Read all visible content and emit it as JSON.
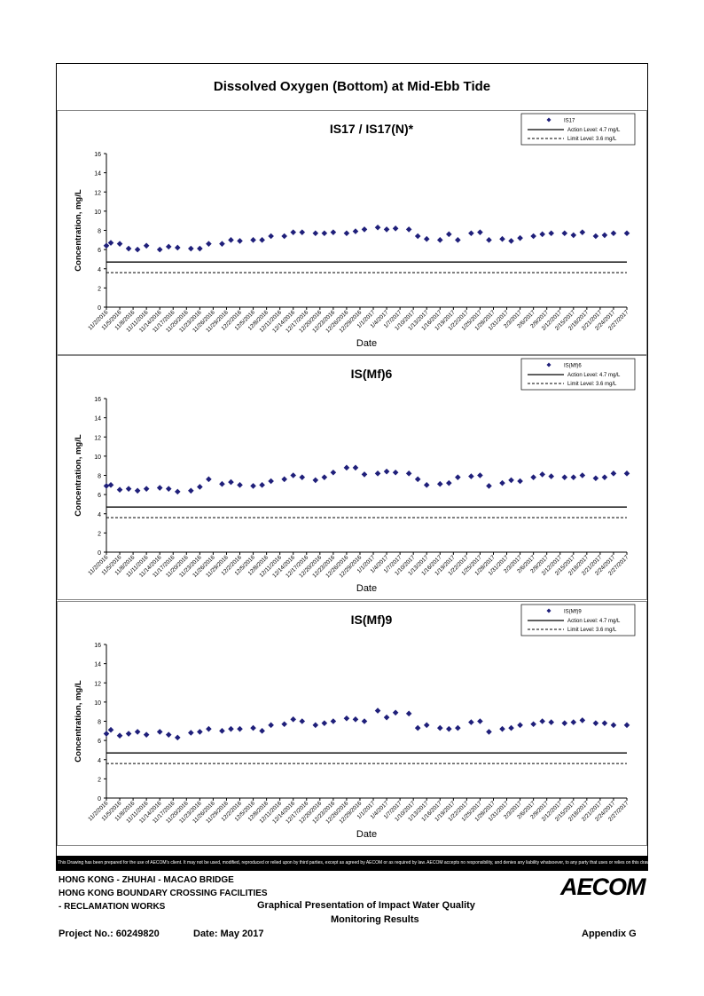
{
  "page": {
    "title": "Dissolved Oxygen (Bottom) at Mid-Ebb Tide",
    "disclaimer": "This Drawing has been prepared for the use of AECOM's client. It may not be used, modified, reproduced or relied upon by third parties, except as agreed by AECOM or as required by law. AECOM accepts no responsibility, and denies any liability whatsoever, to any party that uses or relies on this drawing without AECOM's express written consent."
  },
  "footer": {
    "line1": "HONG KONG - ZHUHAI - MACAO BRIDGE",
    "line2": "HONG KONG BOUNDARY CROSSING FACILITIES",
    "line3": "- RECLAMATION WORKS",
    "center1": "Graphical Presentation of Impact Water Quality",
    "center2": "Monitoring Results",
    "project": "Project No.: 60249820",
    "date": "Date: May 2017",
    "appendix": "Appendix G",
    "logo": "AECOM"
  },
  "chart_data": [
    {
      "type": "scatter",
      "title": "IS17 / IS17(N)*",
      "xlabel": "Date",
      "ylabel": "Concentration, mg/L",
      "ylim": [
        0,
        16
      ],
      "yticks": [
        0,
        2,
        4,
        6,
        8,
        10,
        12,
        14,
        16
      ],
      "xticks": [
        "11/2/2016",
        "11/5/2016",
        "11/8/2016",
        "11/11/2016",
        "11/14/2016",
        "11/17/2016",
        "11/20/2016",
        "11/23/2016",
        "11/26/2016",
        "11/29/2016",
        "12/2/2016",
        "12/5/2016",
        "12/8/2016",
        "12/11/2016",
        "12/14/2016",
        "12/17/2016",
        "12/20/2016",
        "12/23/2016",
        "12/26/2016",
        "12/29/2016",
        "1/1/2017",
        "1/4/2017",
        "1/7/2017",
        "1/10/2017",
        "1/13/2017",
        "1/16/2017",
        "1/19/2017",
        "1/22/2017",
        "1/25/2017",
        "1/28/2017",
        "1/31/2017",
        "2/3/2017",
        "2/6/2017",
        "2/9/2017",
        "2/12/2017",
        "2/15/2017",
        "2/18/2017",
        "2/21/2017",
        "2/24/2017",
        "2/27/2017"
      ],
      "grid": false,
      "legend_position": "top-right",
      "series": [
        {
          "name": "IS17",
          "marker": "diamond",
          "color": "#1f1f7a",
          "x": [
            "11/2/2016",
            "11/3/2016",
            "11/5/2016",
            "11/7/2016",
            "11/9/2016",
            "11/11/2016",
            "11/14/2016",
            "11/16/2016",
            "11/18/2016",
            "11/21/2016",
            "11/23/2016",
            "11/25/2016",
            "11/28/2016",
            "11/30/2016",
            "12/2/2016",
            "12/5/2016",
            "12/7/2016",
            "12/9/2016",
            "12/12/2016",
            "12/14/2016",
            "12/16/2016",
            "12/19/2016",
            "12/21/2016",
            "12/23/2016",
            "12/26/2016",
            "12/28/2016",
            "12/30/2016",
            "1/2/2017",
            "1/4/2017",
            "1/6/2017",
            "1/9/2017",
            "1/11/2017",
            "1/13/2017",
            "1/16/2017",
            "1/18/2017",
            "1/20/2017",
            "1/23/2017",
            "1/25/2017",
            "1/27/2017",
            "1/30/2017",
            "2/1/2017",
            "2/3/2017",
            "2/6/2017",
            "2/8/2017",
            "2/10/2017",
            "2/13/2017",
            "2/15/2017",
            "2/17/2017",
            "2/20/2017",
            "2/22/2017",
            "2/24/2017",
            "2/27/2017"
          ],
          "y": [
            6.4,
            6.7,
            6.6,
            6.1,
            6.0,
            6.4,
            6.0,
            6.3,
            6.2,
            6.1,
            6.1,
            6.6,
            6.6,
            7.0,
            6.9,
            7.0,
            7.0,
            7.4,
            7.4,
            7.8,
            7.8,
            7.7,
            7.7,
            7.8,
            7.7,
            7.9,
            8.1,
            8.3,
            8.1,
            8.2,
            8.1,
            7.4,
            7.1,
            7.0,
            7.6,
            7.0,
            7.7,
            7.8,
            7.0,
            7.1,
            6.9,
            7.2,
            7.4,
            7.6,
            7.7,
            7.7,
            7.5,
            7.8,
            7.4,
            7.5,
            7.7,
            7.7
          ]
        },
        {
          "name": "Action Level: 4.7 mg/L",
          "style": "solid",
          "value": 4.7
        },
        {
          "name": "Limit Level: 3.6 mg/L",
          "style": "dashed",
          "value": 3.6
        }
      ]
    },
    {
      "type": "scatter",
      "title": "IS(Mf)6",
      "xlabel": "Date",
      "ylabel": "Concentration, mg/L",
      "ylim": [
        0,
        16
      ],
      "yticks": [
        0,
        2,
        4,
        6,
        8,
        10,
        12,
        14,
        16
      ],
      "xticks": [
        "11/2/2016",
        "11/5/2016",
        "11/8/2016",
        "11/11/2016",
        "11/14/2016",
        "11/17/2016",
        "11/20/2016",
        "11/23/2016",
        "11/26/2016",
        "11/29/2016",
        "12/2/2016",
        "12/5/2016",
        "12/8/2016",
        "12/11/2016",
        "12/14/2016",
        "12/17/2016",
        "12/20/2016",
        "12/23/2016",
        "12/26/2016",
        "12/29/2016",
        "1/1/2017",
        "1/4/2017",
        "1/7/2017",
        "1/10/2017",
        "1/13/2017",
        "1/16/2017",
        "1/19/2017",
        "1/22/2017",
        "1/25/2017",
        "1/28/2017",
        "1/31/2017",
        "2/3/2017",
        "2/6/2017",
        "2/9/2017",
        "2/12/2017",
        "2/15/2017",
        "2/18/2017",
        "2/21/2017",
        "2/24/2017",
        "2/27/2017"
      ],
      "grid": false,
      "legend_position": "top-right",
      "series": [
        {
          "name": "IS(Mf)6",
          "marker": "diamond",
          "color": "#1f1f7a",
          "x": [
            "11/2/2016",
            "11/3/2016",
            "11/5/2016",
            "11/7/2016",
            "11/9/2016",
            "11/11/2016",
            "11/14/2016",
            "11/16/2016",
            "11/18/2016",
            "11/21/2016",
            "11/23/2016",
            "11/25/2016",
            "11/28/2016",
            "11/30/2016",
            "12/2/2016",
            "12/5/2016",
            "12/7/2016",
            "12/9/2016",
            "12/12/2016",
            "12/14/2016",
            "12/16/2016",
            "12/19/2016",
            "12/21/2016",
            "12/23/2016",
            "12/26/2016",
            "12/28/2016",
            "12/30/2016",
            "1/2/2017",
            "1/4/2017",
            "1/6/2017",
            "1/9/2017",
            "1/11/2017",
            "1/13/2017",
            "1/16/2017",
            "1/18/2017",
            "1/20/2017",
            "1/23/2017",
            "1/25/2017",
            "1/27/2017",
            "1/30/2017",
            "2/1/2017",
            "2/3/2017",
            "2/6/2017",
            "2/8/2017",
            "2/10/2017",
            "2/13/2017",
            "2/15/2017",
            "2/17/2017",
            "2/20/2017",
            "2/22/2017",
            "2/24/2017",
            "2/27/2017"
          ],
          "y": [
            6.9,
            7.0,
            6.5,
            6.6,
            6.4,
            6.6,
            6.7,
            6.6,
            6.3,
            6.4,
            6.8,
            7.6,
            7.1,
            7.3,
            7.0,
            6.9,
            7.0,
            7.4,
            7.6,
            8.0,
            7.8,
            7.5,
            7.8,
            8.3,
            8.8,
            8.8,
            8.1,
            8.2,
            8.4,
            8.3,
            8.2,
            7.6,
            7.0,
            7.1,
            7.2,
            7.8,
            7.9,
            8.0,
            6.9,
            7.2,
            7.5,
            7.4,
            7.8,
            8.1,
            7.9,
            7.8,
            7.8,
            8.0,
            7.7,
            7.8,
            8.2,
            8.2
          ]
        },
        {
          "name": "Action Level: 4.7 mg/L",
          "style": "solid",
          "value": 4.7
        },
        {
          "name": "Limit Level: 3.6 mg/L",
          "style": "dashed",
          "value": 3.6
        }
      ]
    },
    {
      "type": "scatter",
      "title": "IS(Mf)9",
      "xlabel": "Date",
      "ylabel": "Concentration, mg/L",
      "ylim": [
        0,
        16
      ],
      "yticks": [
        0,
        2,
        4,
        6,
        8,
        10,
        12,
        14,
        16
      ],
      "xticks": [
        "11/2/2016",
        "11/5/2016",
        "11/8/2016",
        "11/11/2016",
        "11/14/2016",
        "11/17/2016",
        "11/20/2016",
        "11/23/2016",
        "11/26/2016",
        "11/29/2016",
        "12/2/2016",
        "12/5/2016",
        "12/8/2016",
        "12/11/2016",
        "12/14/2016",
        "12/17/2016",
        "12/20/2016",
        "12/23/2016",
        "12/26/2016",
        "12/29/2016",
        "1/1/2017",
        "1/4/2017",
        "1/7/2017",
        "1/10/2017",
        "1/13/2017",
        "1/16/2017",
        "1/19/2017",
        "1/22/2017",
        "1/25/2017",
        "1/28/2017",
        "1/31/2017",
        "2/3/2017",
        "2/6/2017",
        "2/9/2017",
        "2/12/2017",
        "2/15/2017",
        "2/18/2017",
        "2/21/2017",
        "2/24/2017",
        "2/27/2017"
      ],
      "grid": false,
      "legend_position": "top-right",
      "series": [
        {
          "name": "IS(Mf)9",
          "marker": "diamond",
          "color": "#1f1f7a",
          "x": [
            "11/2/2016",
            "11/3/2016",
            "11/5/2016",
            "11/7/2016",
            "11/9/2016",
            "11/11/2016",
            "11/14/2016",
            "11/16/2016",
            "11/18/2016",
            "11/21/2016",
            "11/23/2016",
            "11/25/2016",
            "11/28/2016",
            "11/30/2016",
            "12/2/2016",
            "12/5/2016",
            "12/7/2016",
            "12/9/2016",
            "12/12/2016",
            "12/14/2016",
            "12/16/2016",
            "12/19/2016",
            "12/21/2016",
            "12/23/2016",
            "12/26/2016",
            "12/28/2016",
            "12/30/2016",
            "1/2/2017",
            "1/4/2017",
            "1/6/2017",
            "1/9/2017",
            "1/11/2017",
            "1/13/2017",
            "1/16/2017",
            "1/18/2017",
            "1/20/2017",
            "1/23/2017",
            "1/25/2017",
            "1/27/2017",
            "1/30/2017",
            "2/1/2017",
            "2/3/2017",
            "2/6/2017",
            "2/8/2017",
            "2/10/2017",
            "2/13/2017",
            "2/15/2017",
            "2/17/2017",
            "2/20/2017",
            "2/22/2017",
            "2/24/2017",
            "2/27/2017"
          ],
          "y": [
            6.7,
            7.1,
            6.5,
            6.7,
            6.9,
            6.6,
            6.9,
            6.6,
            6.3,
            6.8,
            6.9,
            7.2,
            7.0,
            7.2,
            7.2,
            7.3,
            7.0,
            7.6,
            7.7,
            8.2,
            8.0,
            7.6,
            7.8,
            8.0,
            8.3,
            8.2,
            8.0,
            9.1,
            8.4,
            8.9,
            8.8,
            7.3,
            7.6,
            7.3,
            7.2,
            7.3,
            7.9,
            8.0,
            6.9,
            7.2,
            7.3,
            7.6,
            7.7,
            8.0,
            7.9,
            7.8,
            7.9,
            8.1,
            7.8,
            7.8,
            7.6,
            7.6
          ]
        },
        {
          "name": "Action Level: 4.7 mg/L",
          "style": "solid",
          "value": 4.7
        },
        {
          "name": "Limit Level: 3.6 mg/L",
          "style": "dashed",
          "value": 3.6
        }
      ]
    }
  ]
}
